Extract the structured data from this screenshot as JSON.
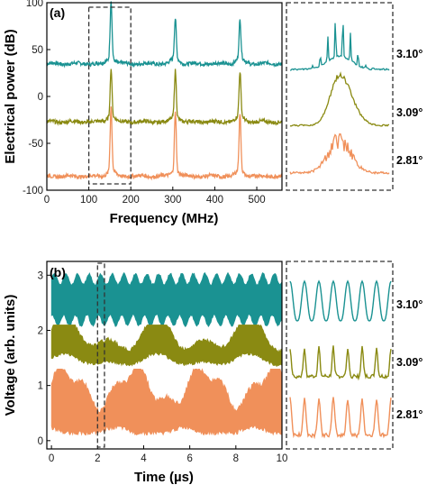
{
  "colors": {
    "teal": "#1a9292",
    "olive": "#8a8a12",
    "orange": "#f0905a"
  },
  "chart_data": [
    {
      "type": "line",
      "panel_label": "(a)",
      "xlabel": "Frequency (MHz)",
      "ylabel": "Electrical power (dB)",
      "xlim": [
        0,
        560
      ],
      "ylim": [
        -100,
        100
      ],
      "xticks": [
        "0",
        "100",
        "200",
        "300",
        "400",
        "500"
      ],
      "yticks": [
        "-100",
        "-50",
        "0",
        "50",
        "100"
      ],
      "zoom_box_x": [
        100,
        200
      ],
      "series": [
        {
          "name": "3.10°",
          "color": "#1a9292",
          "baseline_db": 35,
          "peaks": [
            {
              "x": 153,
              "y": 97
            },
            {
              "x": 306,
              "y": 77
            },
            {
              "x": 460,
              "y": 75
            }
          ]
        },
        {
          "name": "3.09°",
          "color": "#8a8a12",
          "baseline_db": -27,
          "peaks": [
            {
              "x": 153,
              "y": 24
            },
            {
              "x": 306,
              "y": 22
            },
            {
              "x": 460,
              "y": 20
            }
          ]
        },
        {
          "name": "2.81°",
          "color": "#f0905a",
          "baseline_db": -85,
          "peaks": [
            {
              "x": 153,
              "y": -17
            },
            {
              "x": 306,
              "y": -22
            },
            {
              "x": 460,
              "y": -24
            }
          ]
        }
      ],
      "inset_labels": [
        "3.10°",
        "3.09°",
        "2.81°"
      ]
    },
    {
      "type": "area",
      "panel_label": "(b)",
      "xlabel": "Time (µs)",
      "ylabel": "Voltage (arb. units)",
      "xlim": [
        -0.2,
        10
      ],
      "ylim": [
        -0.15,
        3.25
      ],
      "xticks": [
        "0",
        "2",
        "4",
        "6",
        "8",
        "10"
      ],
      "yticks": [
        "0",
        "1",
        "2",
        "3"
      ],
      "zoom_box_x": [
        2.0,
        2.3
      ],
      "series": [
        {
          "name": "3.10°",
          "color": "#1a9292",
          "band": [
            2.1,
            3.05
          ]
        },
        {
          "name": "3.09°",
          "color": "#8a8a12",
          "band": [
            1.2,
            2.1
          ]
        },
        {
          "name": "2.81°",
          "color": "#f0905a",
          "band": [
            0.05,
            1.3
          ]
        }
      ],
      "inset_labels": [
        "3.10°",
        "3.09°",
        "2.81°"
      ]
    }
  ]
}
